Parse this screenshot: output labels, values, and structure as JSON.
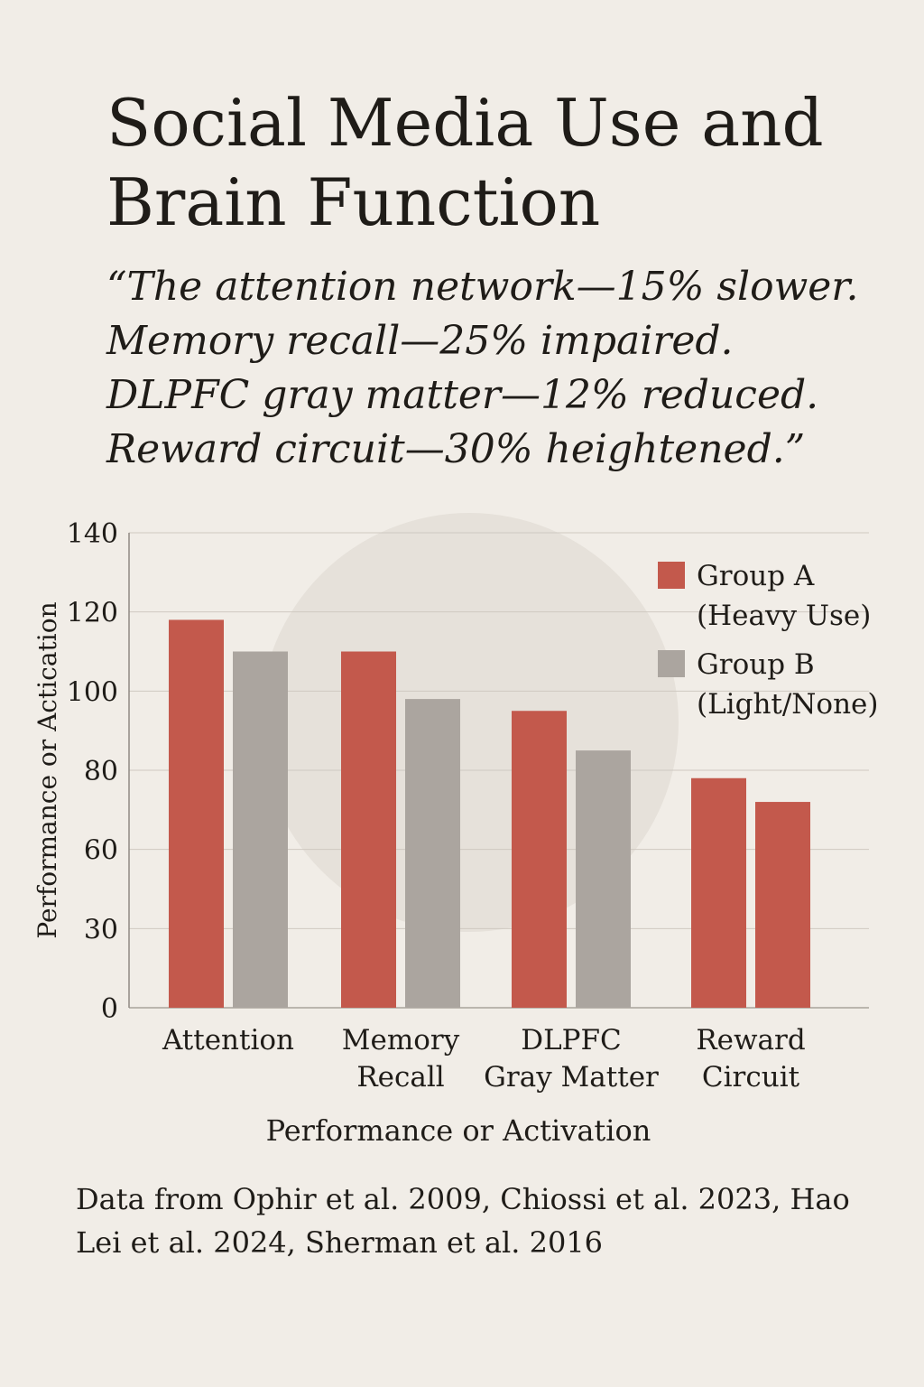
{
  "title": "Social Media Use and Brain Function",
  "quote": {
    "lines": [
      "“The attention network—15% slower.",
      "Memory recall—25% impaired.",
      "DLPFC gray matter—12% reduced.",
      "Reward circuit—30% heightened.”"
    ]
  },
  "source": "Data from Ophir et al. 2009, Chiossi et al. 2023, Hao Lei et al. 2024, Sherman et al. 2016",
  "colors": {
    "background": "#f1ede7",
    "group_a": "#c3594c",
    "group_b": "#aba59f",
    "gridline": "#cfc9c1",
    "circle": "#e6e1da"
  },
  "chart_data": {
    "type": "bar",
    "categories": [
      [
        "Attention"
      ],
      [
        "Memory",
        "Recall"
      ],
      [
        "DLPFC",
        "Gray Matter"
      ],
      [
        "Reward",
        "Circuit"
      ]
    ],
    "series": [
      {
        "name": "Group A (Heavy Use)",
        "name_lines": [
          "Group A",
          "(Heavy Use)"
        ],
        "values": [
          118,
          110,
          95,
          78
        ],
        "colors": [
          "#c3594c",
          "#c3594c",
          "#c3594c",
          "#c3594c"
        ]
      },
      {
        "name": "Group B (Light/None)",
        "name_lines": [
          "Group B",
          "(Light/None)"
        ],
        "values": [
          110,
          98,
          85,
          72
        ],
        "colors": [
          "#aba59f",
          "#aba59f",
          "#aba59f",
          "#c3594c"
        ]
      }
    ],
    "yticks": [
      "0",
      "30",
      "60",
      "80",
      "100",
      "120",
      "140"
    ],
    "ylabel": "Performance or Actication",
    "xlabel": "Performance or Activation",
    "grid": true,
    "legend_position": "top-right"
  }
}
